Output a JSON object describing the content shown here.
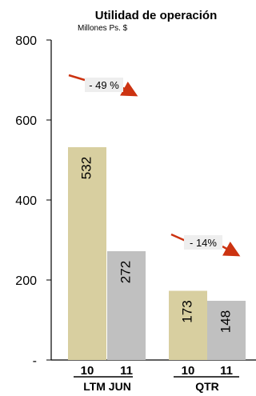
{
  "chart_data": {
    "type": "bar",
    "title": "Utilidad de operación",
    "subtitle": "Millones Ps. $",
    "ylim": [
      0,
      800
    ],
    "yticks": [
      {
        "value": 0,
        "label": "-"
      },
      {
        "value": 200,
        "label": "200"
      },
      {
        "value": 400,
        "label": "400"
      },
      {
        "value": 600,
        "label": "600"
      },
      {
        "value": 800,
        "label": "800"
      }
    ],
    "groups": [
      {
        "label": "LTM JUN",
        "bars": [
          {
            "year": "10",
            "value": 532,
            "label": "532",
            "color": "#d8cfa0"
          },
          {
            "year": "11",
            "value": 272,
            "label": "272",
            "color": "#c0c0c0"
          }
        ],
        "change": "- 49 %"
      },
      {
        "label": "QTR",
        "bars": [
          {
            "year": "10",
            "value": 173,
            "label": "173",
            "color": "#d8cfa0"
          },
          {
            "year": "11",
            "value": 148,
            "label": "148",
            "color": "#c0c0c0"
          }
        ],
        "change": "- 14%"
      }
    ],
    "colors": {
      "arrow": "#cc3311",
      "badge": "#eeeeee",
      "axis": "#000000"
    },
    "grid": false
  }
}
